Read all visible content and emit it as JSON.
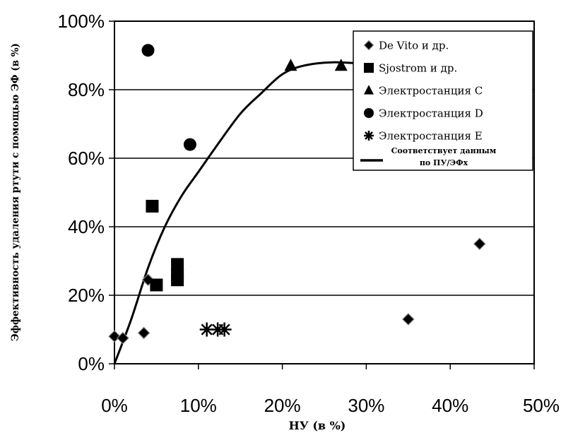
{
  "chart_data": {
    "type": "scatter",
    "title": "",
    "xlabel": "НУ (в %)",
    "ylabel": "Эффективность удаления ртути с помощью ЭФ (в %)",
    "xlim": [
      0,
      50
    ],
    "ylim": [
      0,
      100
    ],
    "x_ticks": [
      "0%",
      "10%",
      "20%",
      "30%",
      "40%",
      "50%"
    ],
    "y_ticks": [
      "0%",
      "20%",
      "40%",
      "60%",
      "80%",
      "100%"
    ],
    "grid": "horizontal",
    "legend_position": "top-right",
    "series": [
      {
        "name": "De Vito и др.",
        "marker": "diamond",
        "points": [
          [
            0,
            8
          ],
          [
            1,
            7.5
          ],
          [
            3.5,
            9
          ],
          [
            4,
            24.5
          ],
          [
            35,
            13
          ],
          [
            43.5,
            35
          ]
        ]
      },
      {
        "name": "Sjostrom и др.",
        "marker": "square",
        "points": [
          [
            4.5,
            46
          ],
          [
            5,
            23
          ],
          [
            7.5,
            29
          ],
          [
            7.5,
            26
          ],
          [
            7.5,
            24.5
          ]
        ]
      },
      {
        "name": "Электростанция C",
        "marker": "triangle",
        "points": [
          [
            21,
            87
          ],
          [
            27,
            87
          ]
        ]
      },
      {
        "name": "Электростанция D",
        "marker": "circle",
        "points": [
          [
            4,
            91.5
          ],
          [
            9,
            64
          ]
        ]
      },
      {
        "name": "Электростанция E",
        "marker": "asterisk",
        "points": [
          [
            11,
            10
          ],
          [
            12.3,
            10
          ],
          [
            13.1,
            10
          ]
        ]
      }
    ],
    "fit": {
      "legend_lines": [
        "Соответствует данным",
        "по ПУ/ЭФх"
      ],
      "points": [
        [
          0,
          0
        ],
        [
          2,
          13
        ],
        [
          4,
          28
        ],
        [
          6,
          40
        ],
        [
          8,
          49
        ],
        [
          10,
          56
        ],
        [
          12,
          63
        ],
        [
          15,
          73
        ],
        [
          17.5,
          79
        ],
        [
          20,
          84.5
        ],
        [
          22.5,
          87
        ],
        [
          26,
          88
        ],
        [
          30,
          87.5
        ]
      ]
    }
  }
}
